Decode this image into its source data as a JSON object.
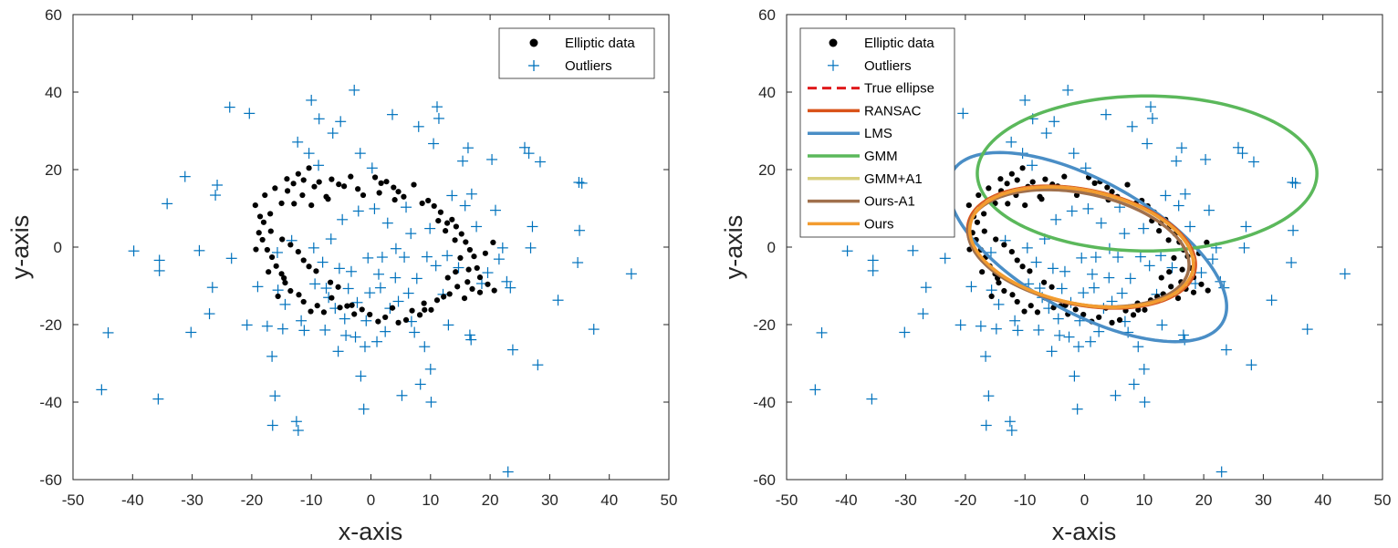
{
  "colors": {
    "elliptic": "#000000",
    "outlier": "#0072BD",
    "true_ellipse": "#E0191B",
    "ransac": "#D95319",
    "lms": "#4A8EC6",
    "gmm": "#5BB85B",
    "gmm_a1": "#D8CF7C",
    "ours_a1": "#A0704C",
    "ours": "#F39C2F"
  },
  "chart_data": [
    {
      "type": "scatter",
      "xlabel": "x-axis",
      "ylabel": "y-axis",
      "xlim": [
        -50,
        50
      ],
      "ylim": [
        -60,
        60
      ],
      "xticks": [
        "-50",
        "-40",
        "-30",
        "-20",
        "-10",
        "0",
        "10",
        "20",
        "30",
        "40",
        "50"
      ],
      "yticks": [
        "-60",
        "-40",
        "-20",
        "0",
        "20",
        "40",
        "60"
      ],
      "legend_position": "top-right",
      "legend": [
        "Elliptic data",
        "Outliers"
      ],
      "series": [
        {
          "name": "Elliptic data",
          "marker": "dot"
        },
        {
          "name": "Outliers",
          "marker": "plus"
        }
      ]
    },
    {
      "type": "scatter",
      "xlabel": "x-axis",
      "ylabel": "y-axis",
      "xlim": [
        -50,
        50
      ],
      "ylim": [
        -60,
        60
      ],
      "xticks": [
        "-50",
        "-40",
        "-30",
        "-20",
        "-10",
        "0",
        "10",
        "20",
        "30",
        "40",
        "50"
      ],
      "yticks": [
        "-60",
        "-40",
        "-20",
        "0",
        "20",
        "40",
        "60"
      ],
      "legend_position": "top-left",
      "legend": [
        "Elliptic data",
        "Outliers",
        "True ellipse",
        "RANSAC",
        "LMS",
        "GMM",
        "GMM+A1",
        "Ours-A1",
        "Ours"
      ],
      "series": [
        {
          "name": "Elliptic data",
          "marker": "dot"
        },
        {
          "name": "Outliers",
          "marker": "plus"
        }
      ],
      "ellipses": [
        {
          "name": "True ellipse",
          "cx": -0.5,
          "cy": 0.0,
          "a": 20.0,
          "b": 14.0,
          "angle": -28,
          "dashed": true
        },
        {
          "name": "RANSAC",
          "cx": -0.5,
          "cy": 0.0,
          "a": 20.3,
          "b": 14.2,
          "angle": -28
        },
        {
          "name": "LMS",
          "cx": 0.5,
          "cy": 0.0,
          "a": 30.5,
          "b": 14.5,
          "angle": -47
        },
        {
          "name": "GMM",
          "cx": 10.5,
          "cy": 19.0,
          "a": 28.5,
          "b": 20.0,
          "angle": 0
        },
        {
          "name": "GMM+A1",
          "cx": -0.5,
          "cy": 0.0,
          "a": 20.0,
          "b": 14.0,
          "angle": -28
        },
        {
          "name": "Ours-A1",
          "cx": -1.0,
          "cy": -0.3,
          "a": 19.6,
          "b": 13.7,
          "angle": -27
        },
        {
          "name": "Ours",
          "cx": -0.5,
          "cy": 0.0,
          "a": 19.9,
          "b": 14.0,
          "angle": -28
        }
      ]
    }
  ],
  "elliptic_points": [
    [
      -19.4,
      10.8
    ],
    [
      -18.6,
      7.9
    ],
    [
      -17.8,
      13.4
    ],
    [
      -16.9,
      8.6
    ],
    [
      -16.1,
      15.2
    ],
    [
      -15.0,
      11.3
    ],
    [
      -14.1,
      17.6
    ],
    [
      -13.0,
      16.4
    ],
    [
      -12.2,
      18.9
    ],
    [
      -11.3,
      17.3
    ],
    [
      -10.4,
      20.4
    ],
    [
      -9.5,
      15.6
    ],
    [
      -8.7,
      16.8
    ],
    [
      -7.5,
      13.0
    ],
    [
      -6.6,
      17.5
    ],
    [
      -5.4,
      16.2
    ],
    [
      -4.5,
      15.7
    ],
    [
      -3.4,
      18.2
    ],
    [
      -2.2,
      15.0
    ],
    [
      -1.3,
      13.4
    ],
    [
      0.7,
      18.0
    ],
    [
      1.7,
      16.5
    ],
    [
      2.6,
      16.9
    ],
    [
      3.8,
      15.4
    ],
    [
      4.6,
      14.3
    ],
    [
      5.5,
      13.0
    ],
    [
      7.2,
      16.1
    ],
    [
      8.6,
      11.3
    ],
    [
      9.6,
      12.0
    ],
    [
      10.6,
      10.6
    ],
    [
      11.7,
      9.0
    ],
    [
      12.8,
      6.2
    ],
    [
      13.6,
      7.1
    ],
    [
      14.3,
      5.3
    ],
    [
      15.2,
      3.4
    ],
    [
      15.9,
      1.3
    ],
    [
      16.6,
      -0.7
    ],
    [
      17.3,
      -2.4
    ],
    [
      17.8,
      -5.4
    ],
    [
      18.3,
      -7.8
    ],
    [
      19.2,
      -1.6
    ],
    [
      20.5,
      1.2
    ],
    [
      20.7,
      -11.2
    ],
    [
      19.6,
      -9.6
    ],
    [
      18.3,
      -11.7
    ],
    [
      17.0,
      -10.8
    ],
    [
      16.2,
      -9.0
    ],
    [
      15.7,
      -13.2
    ],
    [
      14.5,
      -10.2
    ],
    [
      13.2,
      -12.1
    ],
    [
      12.2,
      -12.8
    ],
    [
      11.1,
      -13.7
    ],
    [
      10.1,
      -16.2
    ],
    [
      9.0,
      -16.2
    ],
    [
      8.2,
      -17.5
    ],
    [
      6.9,
      -16.4
    ],
    [
      5.9,
      -18.8
    ],
    [
      4.6,
      -19.5
    ],
    [
      3.6,
      -15.7
    ],
    [
      2.4,
      -18.1
    ],
    [
      1.2,
      -19.2
    ],
    [
      -0.2,
      -17.4
    ],
    [
      -1.5,
      -16.1
    ],
    [
      -2.8,
      -17.3
    ],
    [
      -4.0,
      -15.2
    ],
    [
      -5.2,
      -15.6
    ],
    [
      -6.6,
      -13.1
    ],
    [
      -7.9,
      -16.8
    ],
    [
      -9.0,
      -15.1
    ],
    [
      -10.1,
      -16.6
    ],
    [
      -11.3,
      -14.1
    ],
    [
      -12.1,
      -12.3
    ],
    [
      -13.5,
      -11.3
    ],
    [
      -14.4,
      -9.2
    ],
    [
      -15.0,
      -6.9
    ],
    [
      -15.9,
      -4.9
    ],
    [
      -16.6,
      -2.6
    ],
    [
      -17.4,
      -0.7
    ],
    [
      -18.2,
      1.9
    ],
    [
      -18.8,
      3.7
    ],
    [
      -18.0,
      6.4
    ],
    [
      -16.8,
      4.1
    ],
    [
      -14.9,
      2.0
    ],
    [
      -13.5,
      0.6
    ],
    [
      -12.2,
      -1.2
    ],
    [
      -11.3,
      -3.4
    ],
    [
      -10.4,
      -5.0
    ],
    [
      -9.2,
      -6.2
    ],
    [
      -6.8,
      -9.1
    ],
    [
      -5.5,
      -10.3
    ],
    [
      11.3,
      6.8
    ],
    [
      12.5,
      4.2
    ],
    [
      14.1,
      1.8
    ],
    [
      15.0,
      -2.8
    ],
    [
      14.2,
      -6.4
    ],
    [
      12.9,
      -7.9
    ],
    [
      -14.6,
      -8.0
    ],
    [
      -19.3,
      -0.6
    ],
    [
      -7.2,
      12.4
    ],
    [
      4.0,
      12.2
    ],
    [
      -12.9,
      11.2
    ],
    [
      -11.5,
      13.4
    ],
    [
      -10.0,
      10.8
    ],
    [
      -15.6,
      -12.7
    ],
    [
      -3.2,
      -15.0
    ],
    [
      8.9,
      -14.5
    ],
    [
      16.4,
      -5.8
    ],
    [
      -17.2,
      -6.4
    ],
    [
      -14.0,
      14.5
    ],
    [
      1.4,
      14.0
    ]
  ],
  "outlier_points": [
    [
      -45.2,
      -36.8
    ],
    [
      -44.1,
      -22.1
    ],
    [
      -39.8,
      -1.0
    ],
    [
      -35.7,
      -39.2
    ],
    [
      -35.5,
      -3.4
    ],
    [
      -35.5,
      -6.1
    ],
    [
      -34.2,
      11.2
    ],
    [
      -31.2,
      18.2
    ],
    [
      -30.2,
      -22.0
    ],
    [
      -28.8,
      -0.9
    ],
    [
      -27.1,
      -17.2
    ],
    [
      -26.6,
      -10.4
    ],
    [
      -26.1,
      13.4
    ],
    [
      -25.8,
      16.0
    ],
    [
      -23.7,
      36.1
    ],
    [
      -23.4,
      -2.9
    ],
    [
      -20.8,
      -20.1
    ],
    [
      -20.4,
      34.5
    ],
    [
      -19.0,
      -10.2
    ],
    [
      -17.4,
      -20.4
    ],
    [
      -16.6,
      -28.2
    ],
    [
      -16.5,
      -46.0
    ],
    [
      -16.1,
      -38.4
    ],
    [
      -15.7,
      -1.4
    ],
    [
      -15.6,
      -11.1
    ],
    [
      -14.8,
      -21.1
    ],
    [
      -14.4,
      -14.8
    ],
    [
      -13.3,
      1.7
    ],
    [
      -12.5,
      -45.0
    ],
    [
      -12.3,
      27.1
    ],
    [
      -12.2,
      -47.3
    ],
    [
      -11.7,
      -19.0
    ],
    [
      -11.2,
      -21.5
    ],
    [
      -10.4,
      24.2
    ],
    [
      -10.0,
      37.9
    ],
    [
      -9.4,
      -9.5
    ],
    [
      -8.8,
      21.1
    ],
    [
      -8.7,
      33.1
    ],
    [
      -8.1,
      -3.9
    ],
    [
      -7.7,
      -21.4
    ],
    [
      -7.5,
      -10.6
    ],
    [
      -7.1,
      -13.0
    ],
    [
      -6.7,
      2.1
    ],
    [
      -6.4,
      29.4
    ],
    [
      -5.5,
      -26.9
    ],
    [
      -5.3,
      -5.5
    ],
    [
      -5.1,
      32.4
    ],
    [
      -4.8,
      7.1
    ],
    [
      -4.4,
      -18.5
    ],
    [
      -4.2,
      -22.8
    ],
    [
      -3.8,
      -10.7
    ],
    [
      -3.3,
      -6.3
    ],
    [
      -2.8,
      40.5
    ],
    [
      -2.6,
      -23.2
    ],
    [
      -2.1,
      9.3
    ],
    [
      -1.8,
      24.2
    ],
    [
      -1.7,
      -33.3
    ],
    [
      -1.2,
      -41.8
    ],
    [
      -1.0,
      -25.7
    ],
    [
      -0.8,
      -19.0
    ],
    [
      -0.5,
      -2.8
    ],
    [
      -0.2,
      -11.8
    ],
    [
      0.2,
      20.4
    ],
    [
      0.6,
      9.9
    ],
    [
      1.0,
      -24.4
    ],
    [
      1.3,
      -7.0
    ],
    [
      1.6,
      -10.5
    ],
    [
      1.9,
      -2.6
    ],
    [
      2.4,
      -21.8
    ],
    [
      2.8,
      6.2
    ],
    [
      3.2,
      -15.8
    ],
    [
      3.6,
      34.2
    ],
    [
      4.2,
      -0.4
    ],
    [
      4.6,
      -14.0
    ],
    [
      5.2,
      -38.3
    ],
    [
      5.6,
      -2.6
    ],
    [
      5.9,
      10.3
    ],
    [
      6.3,
      -11.9
    ],
    [
      6.7,
      3.5
    ],
    [
      7.3,
      -22.0
    ],
    [
      7.7,
      -8.1
    ],
    [
      8.0,
      31.1
    ],
    [
      8.3,
      -35.4
    ],
    [
      9.0,
      -25.7
    ],
    [
      9.4,
      -2.5
    ],
    [
      10.0,
      -31.5
    ],
    [
      10.1,
      -40.0
    ],
    [
      10.5,
      26.7
    ],
    [
      10.9,
      -4.8
    ],
    [
      11.1,
      36.2
    ],
    [
      11.4,
      33.2
    ],
    [
      12.1,
      -12.2
    ],
    [
      13.0,
      -20.1
    ],
    [
      13.6,
      13.3
    ],
    [
      14.7,
      -5.3
    ],
    [
      15.4,
      22.2
    ],
    [
      15.8,
      10.7
    ],
    [
      16.3,
      25.6
    ],
    [
      16.6,
      -22.7
    ],
    [
      16.8,
      -23.9
    ],
    [
      16.9,
      13.7
    ],
    [
      17.7,
      5.3
    ],
    [
      18.6,
      -9.4
    ],
    [
      19.6,
      -6.6
    ],
    [
      20.3,
      22.6
    ],
    [
      20.9,
      9.5
    ],
    [
      21.5,
      -3.1
    ],
    [
      22.1,
      -0.2
    ],
    [
      22.8,
      -8.9
    ],
    [
      23.0,
      -58.0
    ],
    [
      23.4,
      -10.5
    ],
    [
      23.8,
      -26.5
    ],
    [
      25.8,
      25.7
    ],
    [
      26.5,
      24.2
    ],
    [
      26.8,
      -0.2
    ],
    [
      27.1,
      5.3
    ],
    [
      28.0,
      -30.4
    ],
    [
      28.4,
      22.0
    ],
    [
      31.4,
      -13.7
    ],
    [
      34.7,
      -4.0
    ],
    [
      34.9,
      16.7
    ],
    [
      35.0,
      4.3
    ],
    [
      35.4,
      16.5
    ],
    [
      37.4,
      -21.2
    ],
    [
      43.7,
      -6.9
    ],
    [
      -9.6,
      -0.2
    ],
    [
      9.9,
      4.8
    ],
    [
      4.1,
      -7.9
    ],
    [
      -6.0,
      -15.8
    ],
    [
      6.8,
      -19.2
    ],
    [
      -2.3,
      -14.3
    ],
    [
      12.8,
      -2.2
    ]
  ]
}
